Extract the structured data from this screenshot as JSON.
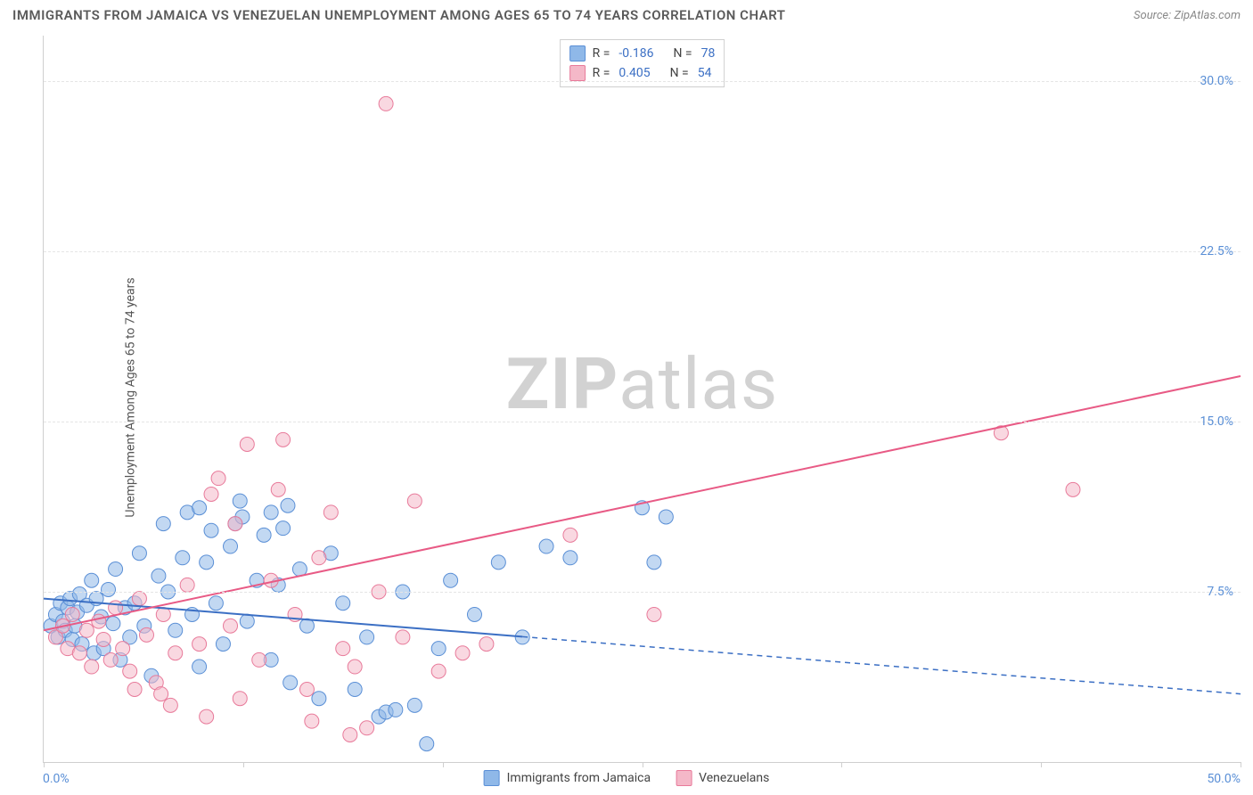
{
  "title": "IMMIGRANTS FROM JAMAICA VS VENEZUELAN UNEMPLOYMENT AMONG AGES 65 TO 74 YEARS CORRELATION CHART",
  "source_label": "Source: ",
  "source_name": "ZipAtlas.com",
  "y_axis_label": "Unemployment Among Ages 65 to 74 years",
  "watermark_a": "ZIP",
  "watermark_b": "atlas",
  "chart": {
    "type": "scatter",
    "background_color": "#ffffff",
    "grid_color": "#e5e5e5",
    "axis_color": "#cfcfcf",
    "tick_label_color": "#5a8fd6",
    "xlim": [
      0,
      50
    ],
    "ylim": [
      0,
      32
    ],
    "y_ticks": [
      7.5,
      15.0,
      22.5,
      30.0
    ],
    "y_tick_labels": [
      "7.5%",
      "15.0%",
      "22.5%",
      "30.0%"
    ],
    "x_ticks": [
      0,
      8.33,
      16.67,
      25,
      33.33,
      41.67,
      50
    ],
    "x_origin_label": "0.0%",
    "x_max_label": "50.0%",
    "point_radius": 8,
    "point_opacity": 0.55,
    "line_width": 2,
    "series": [
      {
        "name": "Immigrants from Jamaica",
        "fill": "#8fb8e8",
        "stroke": "#5a8fd6",
        "line_color": "#3b6fc4",
        "R": "-0.186",
        "N": "78",
        "trend": {
          "x1": 0,
          "y1": 7.2,
          "x2": 20,
          "y2": 5.5,
          "extend_x": 50,
          "extend_y": 3.0,
          "dashed_after": 20
        },
        "points": [
          [
            0.3,
            6.0
          ],
          [
            0.5,
            6.5
          ],
          [
            0.6,
            5.5
          ],
          [
            0.7,
            7.0
          ],
          [
            0.8,
            6.2
          ],
          [
            0.9,
            5.8
          ],
          [
            1.0,
            6.8
          ],
          [
            1.1,
            7.2
          ],
          [
            1.2,
            5.4
          ],
          [
            1.3,
            6.0
          ],
          [
            1.4,
            6.6
          ],
          [
            1.5,
            7.4
          ],
          [
            1.6,
            5.2
          ],
          [
            1.8,
            6.9
          ],
          [
            2.0,
            8.0
          ],
          [
            2.1,
            4.8
          ],
          [
            2.2,
            7.2
          ],
          [
            2.4,
            6.4
          ],
          [
            2.5,
            5.0
          ],
          [
            2.7,
            7.6
          ],
          [
            2.9,
            6.1
          ],
          [
            3.0,
            8.5
          ],
          [
            3.2,
            4.5
          ],
          [
            3.4,
            6.8
          ],
          [
            3.6,
            5.5
          ],
          [
            3.8,
            7.0
          ],
          [
            4.0,
            9.2
          ],
          [
            4.2,
            6.0
          ],
          [
            4.5,
            3.8
          ],
          [
            4.8,
            8.2
          ],
          [
            5.0,
            10.5
          ],
          [
            5.2,
            7.5
          ],
          [
            5.5,
            5.8
          ],
          [
            5.8,
            9.0
          ],
          [
            6.0,
            11.0
          ],
          [
            6.2,
            6.5
          ],
          [
            6.5,
            4.2
          ],
          [
            6.8,
            8.8
          ],
          [
            7.0,
            10.2
          ],
          [
            7.2,
            7.0
          ],
          [
            7.5,
            5.2
          ],
          [
            7.8,
            9.5
          ],
          [
            8.0,
            10.5
          ],
          [
            8.3,
            10.8
          ],
          [
            8.5,
            6.2
          ],
          [
            8.9,
            8.0
          ],
          [
            9.2,
            10.0
          ],
          [
            9.5,
            4.5
          ],
          [
            9.8,
            7.8
          ],
          [
            10.0,
            10.3
          ],
          [
            10.3,
            3.5
          ],
          [
            10.7,
            8.5
          ],
          [
            11.0,
            6.0
          ],
          [
            11.5,
            2.8
          ],
          [
            12.0,
            9.2
          ],
          [
            12.5,
            7.0
          ],
          [
            13.0,
            3.2
          ],
          [
            13.5,
            5.5
          ],
          [
            14.0,
            2.0
          ],
          [
            14.3,
            2.2
          ],
          [
            14.7,
            2.3
          ],
          [
            15.0,
            7.5
          ],
          [
            15.5,
            2.5
          ],
          [
            16.0,
            0.8
          ],
          [
            16.5,
            5.0
          ],
          [
            17.0,
            8.0
          ],
          [
            18.0,
            6.5
          ],
          [
            19.0,
            8.8
          ],
          [
            20.0,
            5.5
          ],
          [
            21.0,
            9.5
          ],
          [
            22.0,
            9.0
          ],
          [
            25.0,
            11.2
          ],
          [
            25.5,
            8.8
          ],
          [
            26.0,
            10.8
          ],
          [
            9.5,
            11.0
          ],
          [
            10.2,
            11.3
          ],
          [
            8.2,
            11.5
          ],
          [
            6.5,
            11.2
          ]
        ]
      },
      {
        "name": "Venezuelans",
        "fill": "#f4b8c8",
        "stroke": "#e87a9a",
        "line_color": "#e85a85",
        "R": "0.405",
        "N": "54",
        "trend": {
          "x1": 0,
          "y1": 5.8,
          "x2": 50,
          "y2": 17.0,
          "dashed_after": 50
        },
        "points": [
          [
            0.5,
            5.5
          ],
          [
            0.8,
            6.0
          ],
          [
            1.0,
            5.0
          ],
          [
            1.2,
            6.5
          ],
          [
            1.5,
            4.8
          ],
          [
            1.8,
            5.8
          ],
          [
            2.0,
            4.2
          ],
          [
            2.3,
            6.2
          ],
          [
            2.5,
            5.4
          ],
          [
            2.8,
            4.5
          ],
          [
            3.0,
            6.8
          ],
          [
            3.3,
            5.0
          ],
          [
            3.6,
            4.0
          ],
          [
            4.0,
            7.2
          ],
          [
            4.3,
            5.6
          ],
          [
            4.7,
            3.5
          ],
          [
            5.0,
            6.5
          ],
          [
            5.5,
            4.8
          ],
          [
            6.0,
            7.8
          ],
          [
            6.5,
            5.2
          ],
          [
            7.0,
            11.8
          ],
          [
            7.3,
            12.5
          ],
          [
            7.8,
            6.0
          ],
          [
            8.0,
            10.5
          ],
          [
            8.5,
            14.0
          ],
          [
            9.0,
            4.5
          ],
          [
            9.5,
            8.0
          ],
          [
            10.0,
            14.2
          ],
          [
            10.5,
            6.5
          ],
          [
            11.0,
            3.2
          ],
          [
            11.5,
            9.0
          ],
          [
            12.0,
            11.0
          ],
          [
            12.5,
            5.0
          ],
          [
            13.0,
            4.2
          ],
          [
            13.5,
            1.5
          ],
          [
            14.0,
            7.5
          ],
          [
            14.3,
            29.0
          ],
          [
            15.0,
            5.5
          ],
          [
            15.5,
            11.5
          ],
          [
            16.5,
            4.0
          ],
          [
            17.5,
            4.8
          ],
          [
            18.5,
            5.2
          ],
          [
            22.0,
            10.0
          ],
          [
            25.5,
            6.5
          ],
          [
            40.0,
            14.5
          ],
          [
            43.0,
            12.0
          ],
          [
            5.3,
            2.5
          ],
          [
            6.8,
            2.0
          ],
          [
            8.2,
            2.8
          ],
          [
            4.9,
            3.0
          ],
          [
            3.8,
            3.2
          ],
          [
            12.8,
            1.2
          ],
          [
            11.2,
            1.8
          ],
          [
            9.8,
            12.0
          ]
        ]
      }
    ]
  },
  "legend_top": {
    "R_label": "R =",
    "N_label": "N ="
  },
  "legend_bottom": {
    "items": [
      "Immigrants from Jamaica",
      "Venezuelans"
    ]
  }
}
